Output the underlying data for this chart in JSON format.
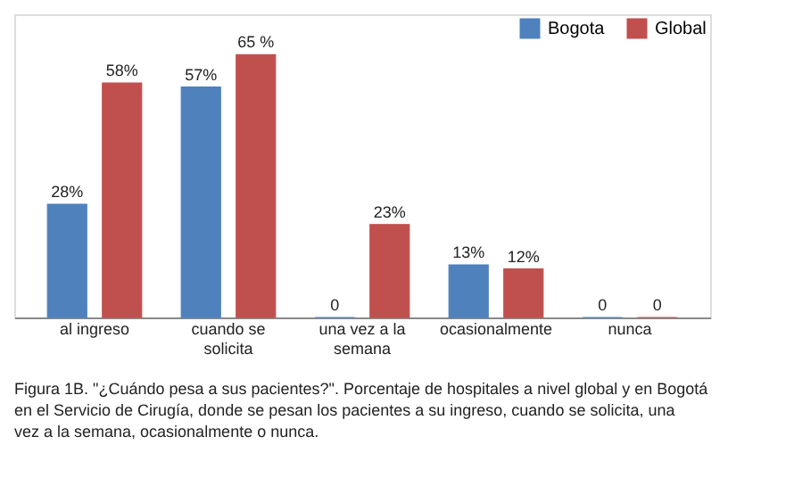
{
  "chart_data": {
    "type": "bar",
    "categories": [
      "al ingreso",
      "cuando se solicita",
      "una vez a la semana",
      "ocasionalmente",
      "nunca"
    ],
    "series": [
      {
        "name": "Bogota",
        "color": "#4f81bd",
        "values": [
          28,
          57,
          0,
          13,
          0
        ],
        "value_labels": [
          "28%",
          "57%",
          "0",
          "13%",
          "0"
        ]
      },
      {
        "name": "Global",
        "color": "#c0504d",
        "values": [
          58,
          65,
          23,
          12,
          0
        ],
        "value_labels": [
          "58%",
          "65 %",
          "23%",
          "12%",
          "0"
        ]
      }
    ],
    "ylim": [
      0,
      75
    ],
    "legend": "top right",
    "annotations": [
      "Figura 1B. \"¿Cuándo pesa a sus pacientes?\". Porcentaje de hospitales a nivel global y en Bogotá en el Servicio de Cirugía, donde se pesan los pacientes a su ingreso, cuando se solicita, una vez a la semana, ocasionalmente o nunca."
    ]
  }
}
